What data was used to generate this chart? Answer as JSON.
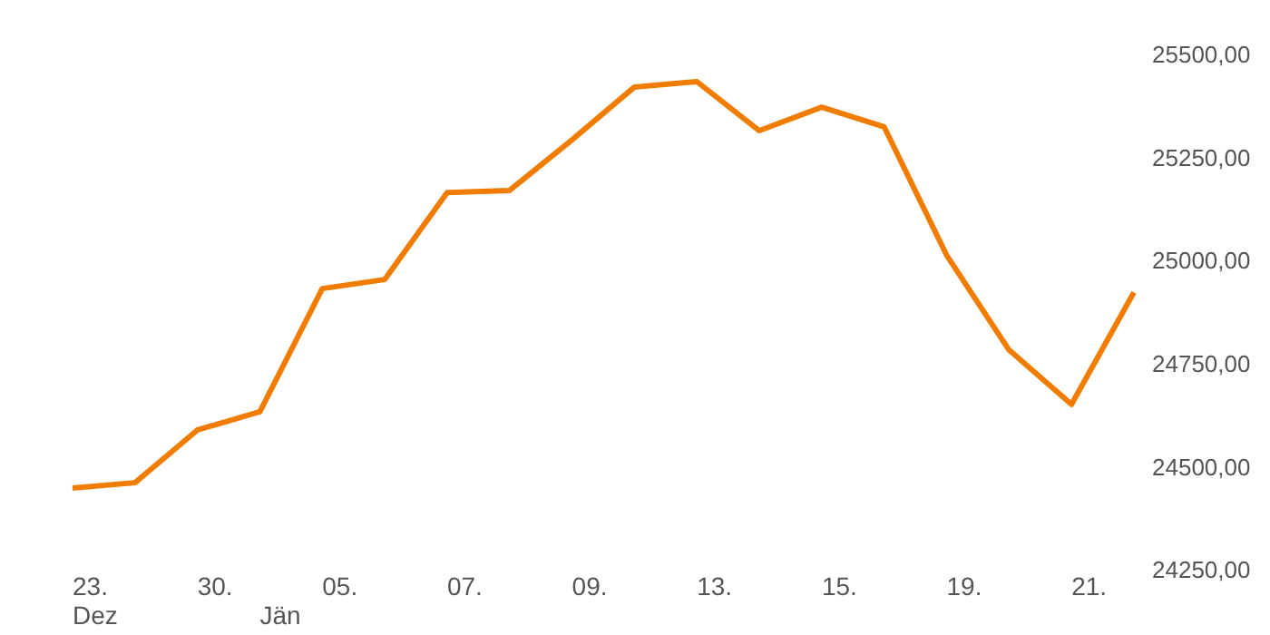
{
  "chart_data": {
    "type": "line",
    "categories": [
      "23.\nDez",
      null,
      "30.",
      "\nJän",
      "05.",
      null,
      "07.",
      null,
      "09.",
      null,
      "13.",
      null,
      "15.",
      null,
      "19.",
      null,
      "21.",
      null
    ],
    "series": [
      {
        "color": "#f07c00",
        "values": [
          24448,
          24461,
          24589,
          24633,
          24932,
          24954,
          25165,
          25170,
          25293,
          25421,
          25434,
          25315,
          25372,
          25324,
          25013,
          24783,
          24651,
          24923
        ]
      }
    ],
    "ylim": [
      24250,
      25500
    ],
    "yticks": [
      {
        "value": 24250,
        "label": "24250,00"
      },
      {
        "value": 24500,
        "label": "24500,00"
      },
      {
        "value": 24750,
        "label": "24750,00"
      },
      {
        "value": 25000,
        "label": "25000,00"
      },
      {
        "value": 25250,
        "label": "25250,00"
      },
      {
        "value": 25500,
        "label": "25500,00"
      }
    ],
    "grid": false,
    "marker": "none",
    "line_style": "solid"
  }
}
